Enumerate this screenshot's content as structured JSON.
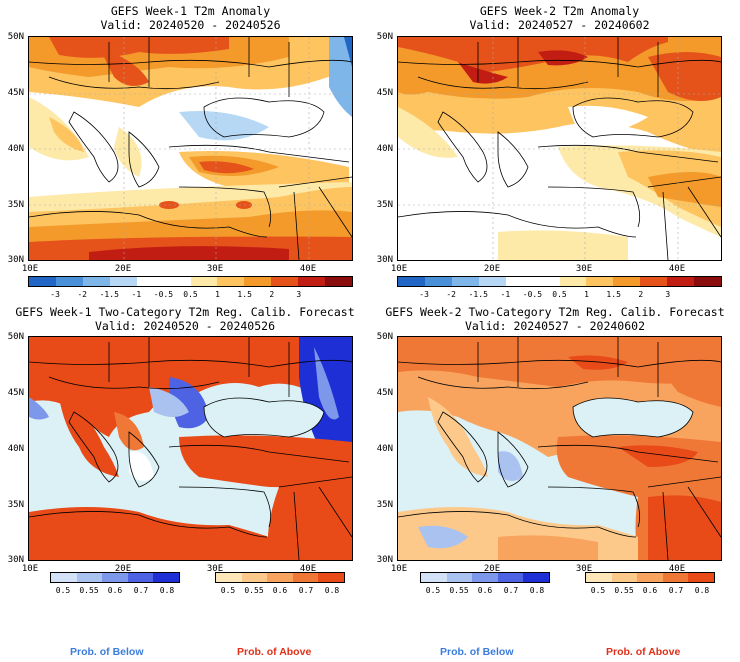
{
  "panels": [
    {
      "title1": "GEFS Week-1 T2m Anomaly",
      "title2": "Valid: 20240520 - 20240526"
    },
    {
      "title1": "GEFS Week-2 T2m Anomaly",
      "title2": "Valid: 20240527 - 20240602"
    },
    {
      "title1": "GEFS Week-1 Two-Category T2m Reg. Calib. Forecast",
      "title2": "Valid: 20240520 - 20240526"
    },
    {
      "title1": "GEFS Week-2 Two-Category T2m Reg. Calib. Forecast",
      "title2": "Valid: 20240527 - 20240602"
    }
  ],
  "axes": {
    "lat_labels": [
      "50N",
      "45N",
      "40N",
      "35N",
      "30N"
    ],
    "lon_labels": [
      "10E",
      "20E",
      "30E",
      "40E"
    ]
  },
  "anomaly_colorbar": {
    "labels": [
      "-3",
      "-2",
      "-1.5",
      "-1",
      "-0.5",
      "0.5",
      "1",
      "1.5",
      "2",
      "3"
    ],
    "colors": [
      "#2166c4",
      "#4a90d9",
      "#7fb6ea",
      "#b6d8f5",
      "#ffffff",
      "#ffffff",
      "#fde9a8",
      "#fdc460",
      "#f39a2b",
      "#e5531b",
      "#c21d12",
      "#8a0c0c"
    ]
  },
  "prob_below_colorbar": {
    "labels": [
      "0.5",
      "0.55",
      "0.6",
      "0.7",
      "0.8"
    ],
    "colors": [
      "#d3e2f7",
      "#a9c2f0",
      "#7d97ea",
      "#4d63e3",
      "#1f2fd6"
    ]
  },
  "prob_above_colorbar": {
    "labels": [
      "0.5",
      "0.55",
      "0.6",
      "0.7",
      "0.8"
    ],
    "colors": [
      "#fde7b9",
      "#fcc98b",
      "#f8a35e",
      "#f07836",
      "#e84a18"
    ]
  },
  "footer": {
    "below_label": "Prob. of Below",
    "above_label": "Prob. of Above",
    "below_color": "#3b7ddc",
    "above_color": "#e0301a"
  },
  "colors": {
    "sea": "#dbf1f6",
    "land_neutral": "#ffffff"
  }
}
